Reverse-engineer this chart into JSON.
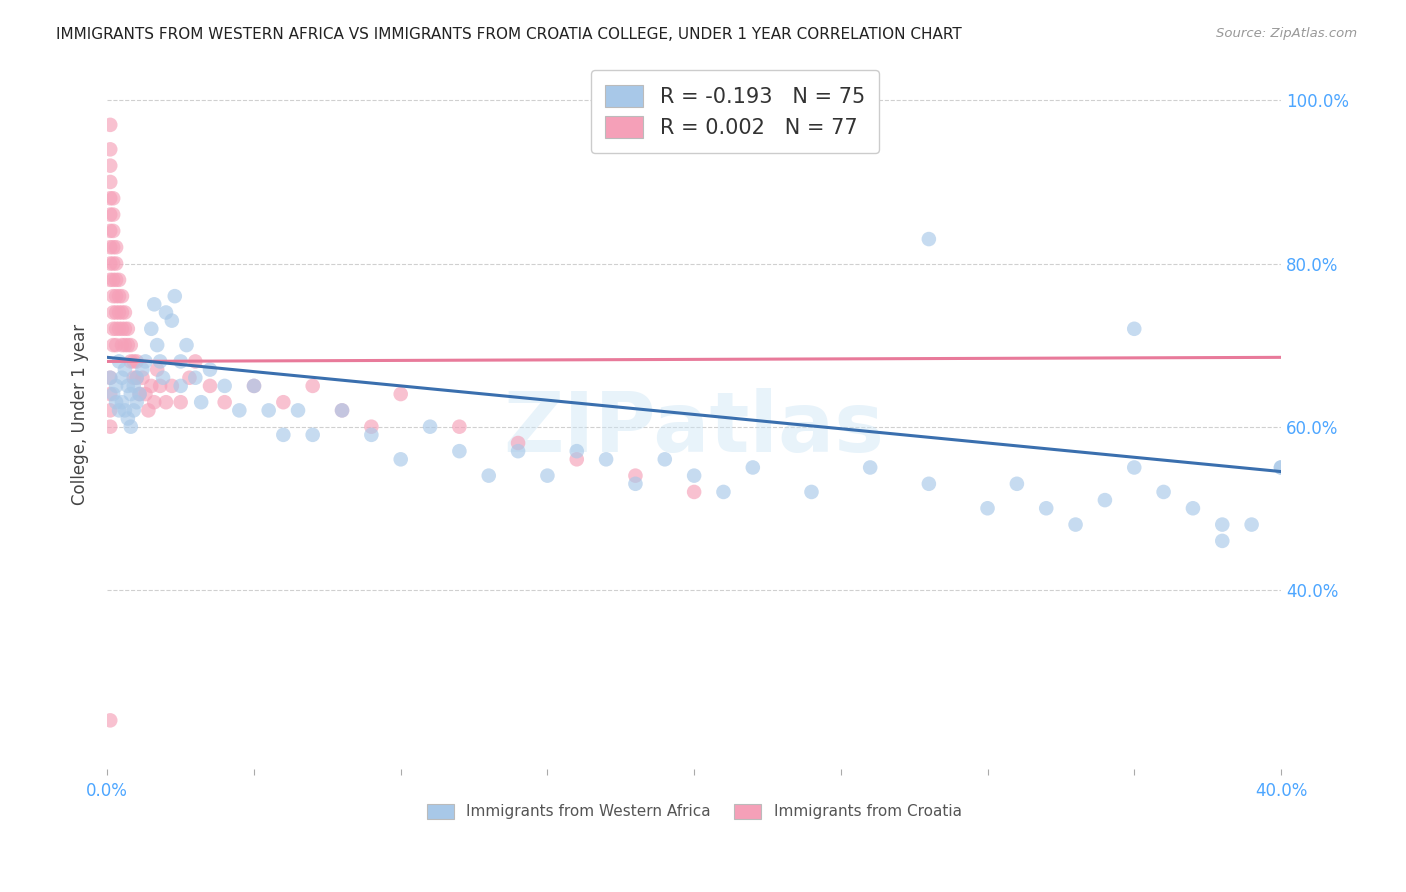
{
  "title": "IMMIGRANTS FROM WESTERN AFRICA VS IMMIGRANTS FROM CROATIA COLLEGE, UNDER 1 YEAR CORRELATION CHART",
  "source": "Source: ZipAtlas.com",
  "ylabel": "College, Under 1 year",
  "legend_label_1": "Immigrants from Western Africa",
  "legend_label_2": "Immigrants from Croatia",
  "R1": -0.193,
  "N1": 75,
  "R2": 0.002,
  "N2": 77,
  "color_blue": "#a8c8e8",
  "color_pink": "#f5a0b8",
  "color_blue_line": "#3a6fae",
  "color_pink_line": "#e87a9a",
  "background_color": "#ffffff",
  "grid_color": "#d0d0d0",
  "title_color": "#222222",
  "axis_color": "#4da6ff",
  "xlim": [
    0.0,
    0.4
  ],
  "ylim": [
    0.18,
    1.05
  ],
  "watermark": "ZIPatlas",
  "blue_x": [
    0.001,
    0.002,
    0.003,
    0.003,
    0.004,
    0.004,
    0.005,
    0.005,
    0.006,
    0.006,
    0.007,
    0.007,
    0.008,
    0.008,
    0.009,
    0.009,
    0.01,
    0.01,
    0.011,
    0.012,
    0.013,
    0.015,
    0.016,
    0.017,
    0.018,
    0.019,
    0.02,
    0.022,
    0.023,
    0.025,
    0.025,
    0.027,
    0.03,
    0.032,
    0.035,
    0.04,
    0.045,
    0.05,
    0.055,
    0.06,
    0.065,
    0.07,
    0.08,
    0.09,
    0.1,
    0.11,
    0.12,
    0.13,
    0.14,
    0.15,
    0.16,
    0.17,
    0.18,
    0.19,
    0.2,
    0.21,
    0.22,
    0.24,
    0.26,
    0.28,
    0.3,
    0.31,
    0.32,
    0.33,
    0.34,
    0.35,
    0.36,
    0.37,
    0.38,
    0.39,
    0.4,
    0.28,
    0.35,
    0.38,
    0.4
  ],
  "blue_y": [
    0.66,
    0.64,
    0.65,
    0.63,
    0.68,
    0.62,
    0.66,
    0.63,
    0.67,
    0.62,
    0.65,
    0.61,
    0.64,
    0.6,
    0.65,
    0.62,
    0.66,
    0.63,
    0.64,
    0.67,
    0.68,
    0.72,
    0.75,
    0.7,
    0.68,
    0.66,
    0.74,
    0.73,
    0.76,
    0.68,
    0.65,
    0.7,
    0.66,
    0.63,
    0.67,
    0.65,
    0.62,
    0.65,
    0.62,
    0.59,
    0.62,
    0.59,
    0.62,
    0.59,
    0.56,
    0.6,
    0.57,
    0.54,
    0.57,
    0.54,
    0.57,
    0.56,
    0.53,
    0.56,
    0.54,
    0.52,
    0.55,
    0.52,
    0.55,
    0.53,
    0.5,
    0.53,
    0.5,
    0.48,
    0.51,
    0.55,
    0.52,
    0.5,
    0.48,
    0.48,
    0.55,
    0.83,
    0.72,
    0.46,
    0.55
  ],
  "pink_x": [
    0.001,
    0.001,
    0.001,
    0.001,
    0.001,
    0.001,
    0.001,
    0.001,
    0.001,
    0.001,
    0.002,
    0.002,
    0.002,
    0.002,
    0.002,
    0.002,
    0.002,
    0.002,
    0.002,
    0.002,
    0.003,
    0.003,
    0.003,
    0.003,
    0.003,
    0.003,
    0.003,
    0.004,
    0.004,
    0.004,
    0.004,
    0.005,
    0.005,
    0.005,
    0.005,
    0.006,
    0.006,
    0.006,
    0.007,
    0.007,
    0.008,
    0.008,
    0.009,
    0.009,
    0.01,
    0.01,
    0.011,
    0.012,
    0.013,
    0.014,
    0.015,
    0.016,
    0.017,
    0.018,
    0.02,
    0.022,
    0.025,
    0.028,
    0.03,
    0.035,
    0.04,
    0.05,
    0.06,
    0.07,
    0.08,
    0.09,
    0.1,
    0.12,
    0.14,
    0.16,
    0.18,
    0.2,
    0.001,
    0.001,
    0.001,
    0.001,
    0.001
  ],
  "pink_y": [
    0.97,
    0.94,
    0.92,
    0.9,
    0.88,
    0.86,
    0.84,
    0.82,
    0.8,
    0.78,
    0.88,
    0.86,
    0.84,
    0.82,
    0.8,
    0.78,
    0.76,
    0.74,
    0.72,
    0.7,
    0.82,
    0.8,
    0.78,
    0.76,
    0.74,
    0.72,
    0.7,
    0.78,
    0.76,
    0.74,
    0.72,
    0.76,
    0.74,
    0.72,
    0.7,
    0.74,
    0.72,
    0.7,
    0.72,
    0.7,
    0.7,
    0.68,
    0.68,
    0.66,
    0.68,
    0.66,
    0.64,
    0.66,
    0.64,
    0.62,
    0.65,
    0.63,
    0.67,
    0.65,
    0.63,
    0.65,
    0.63,
    0.66,
    0.68,
    0.65,
    0.63,
    0.65,
    0.63,
    0.65,
    0.62,
    0.6,
    0.64,
    0.6,
    0.58,
    0.56,
    0.54,
    0.52,
    0.66,
    0.64,
    0.62,
    0.6,
    0.24
  ],
  "blue_line_x": [
    0.0,
    0.4
  ],
  "blue_line_y": [
    0.685,
    0.545
  ],
  "pink_line_x": [
    0.0,
    0.4
  ],
  "pink_line_y": [
    0.68,
    0.685
  ]
}
